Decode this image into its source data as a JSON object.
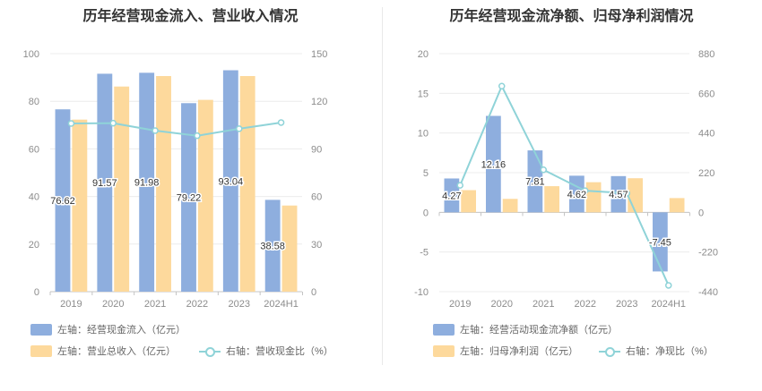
{
  "colors": {
    "blue": "#8eaede",
    "orange": "#fdd99c",
    "line": "#8fd3d8",
    "axis": "#c4c4c4",
    "grid": "#ececec"
  },
  "chart_data": [
    {
      "type": "bar",
      "title": "历年经营现金流入、营业收入情况",
      "categories": [
        "2019",
        "2020",
        "2021",
        "2022",
        "2023",
        "2024H1"
      ],
      "y_left": {
        "ticks": [
          0,
          20,
          40,
          60,
          80,
          100
        ],
        "range": [
          0,
          100
        ]
      },
      "y_right": {
        "ticks": [
          0,
          30,
          60,
          90,
          120,
          150
        ],
        "range": [
          0,
          150
        ]
      },
      "series": [
        {
          "name": "左轴：经营现金流入（亿元）",
          "axis": "left",
          "type": "bar",
          "color": "#8eaede",
          "values": [
            76.62,
            91.57,
            91.98,
            79.22,
            93.04,
            38.58
          ],
          "labels": [
            "76.62",
            "91.57",
            "91.98",
            "79.22",
            "93.04",
            "38.58"
          ]
        },
        {
          "name": "左轴：营业总收入（亿元）",
          "axis": "left",
          "type": "bar",
          "color": "#fdd99c",
          "values": [
            72.3,
            86.2,
            90.6,
            80.6,
            90.6,
            36.2
          ]
        },
        {
          "name": "右轴：营收现金比（%）",
          "axis": "right",
          "type": "line",
          "color": "#8fd3d8",
          "values": [
            106.0,
            106.2,
            101.5,
            98.3,
            102.7,
            106.6
          ]
        }
      ],
      "legend_placement": "bottom"
    },
    {
      "type": "bar",
      "title": "历年经营现金流净额、归母净利润情况",
      "categories": [
        "2019",
        "2020",
        "2021",
        "2022",
        "2023",
        "2024H1"
      ],
      "y_left": {
        "ticks": [
          -10,
          -5,
          0,
          5,
          10,
          15,
          20
        ],
        "range": [
          -10,
          20
        ]
      },
      "y_right": {
        "ticks": [
          -440,
          -220,
          0,
          220,
          440,
          660,
          880
        ],
        "range": [
          -440,
          880
        ]
      },
      "series": [
        {
          "name": "左轴：经营活动现金流净额（亿元）",
          "axis": "left",
          "type": "bar",
          "color": "#8eaede",
          "values": [
            4.27,
            12.16,
            7.81,
            4.62,
            4.57,
            -7.45
          ],
          "labels": [
            "4.27",
            "12.16",
            "7.81",
            "4.62",
            "4.57",
            "-7.45"
          ]
        },
        {
          "name": "左轴：归母净利润（亿元）",
          "axis": "left",
          "type": "bar",
          "color": "#fdd99c",
          "values": [
            2.8,
            1.7,
            3.3,
            3.8,
            4.3,
            1.8
          ]
        },
        {
          "name": "右轴：净现比（%）",
          "axis": "right",
          "type": "line",
          "color": "#8fd3d8",
          "values": [
            150,
            700,
            236,
            120,
            106,
            -405
          ]
        }
      ],
      "legend_placement": "bottom"
    }
  ]
}
